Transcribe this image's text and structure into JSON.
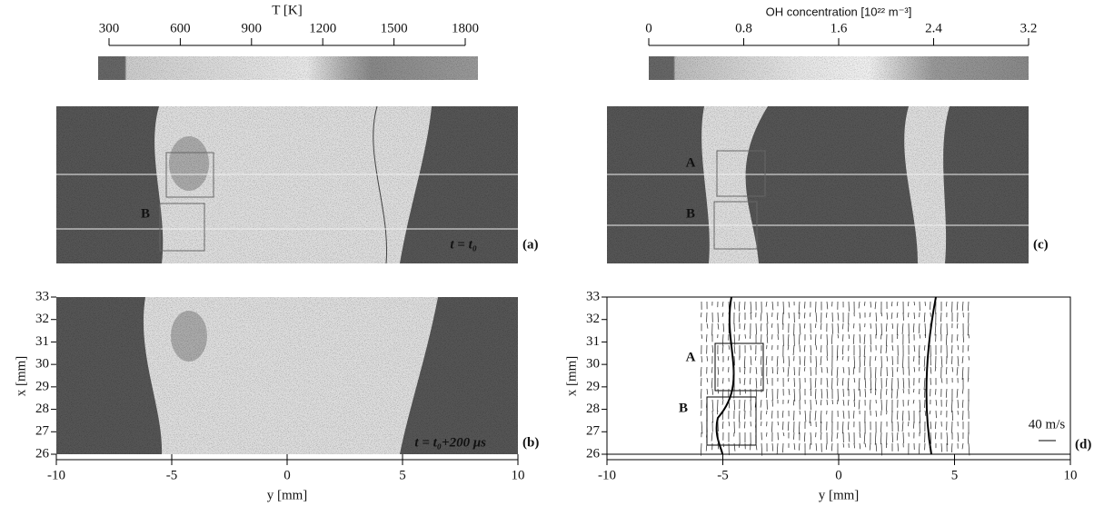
{
  "colorbars": [
    {
      "title": "T  [K]",
      "ticks": [
        300,
        600,
        900,
        1200,
        1500,
        1800
      ]
    },
    {
      "title": "OH concentration  [10²² m⁻³]",
      "ticks": [
        0,
        0.8,
        1.6,
        2.4,
        3.2
      ]
    }
  ],
  "x_axis": {
    "label": "y  [mm]",
    "lim": [
      -10,
      10
    ],
    "ticks": [
      -10,
      -5,
      0,
      5,
      10
    ]
  },
  "y_axis": {
    "label": "x  [mm]",
    "lim": [
      26,
      33
    ],
    "ticks": [
      26,
      27,
      28,
      29,
      30,
      31,
      32,
      33
    ]
  },
  "panels": [
    {
      "label": "(a)",
      "annotation": "t = t₀",
      "boxes": [
        "B"
      ]
    },
    {
      "label": "(b)",
      "annotation": "t = t₀+200 μs"
    },
    {
      "label": "(c)",
      "boxes": [
        "A",
        "B"
      ]
    },
    {
      "label": "(d)",
      "boxes": [
        "A",
        "B"
      ],
      "scale": "40 m/s"
    }
  ]
}
